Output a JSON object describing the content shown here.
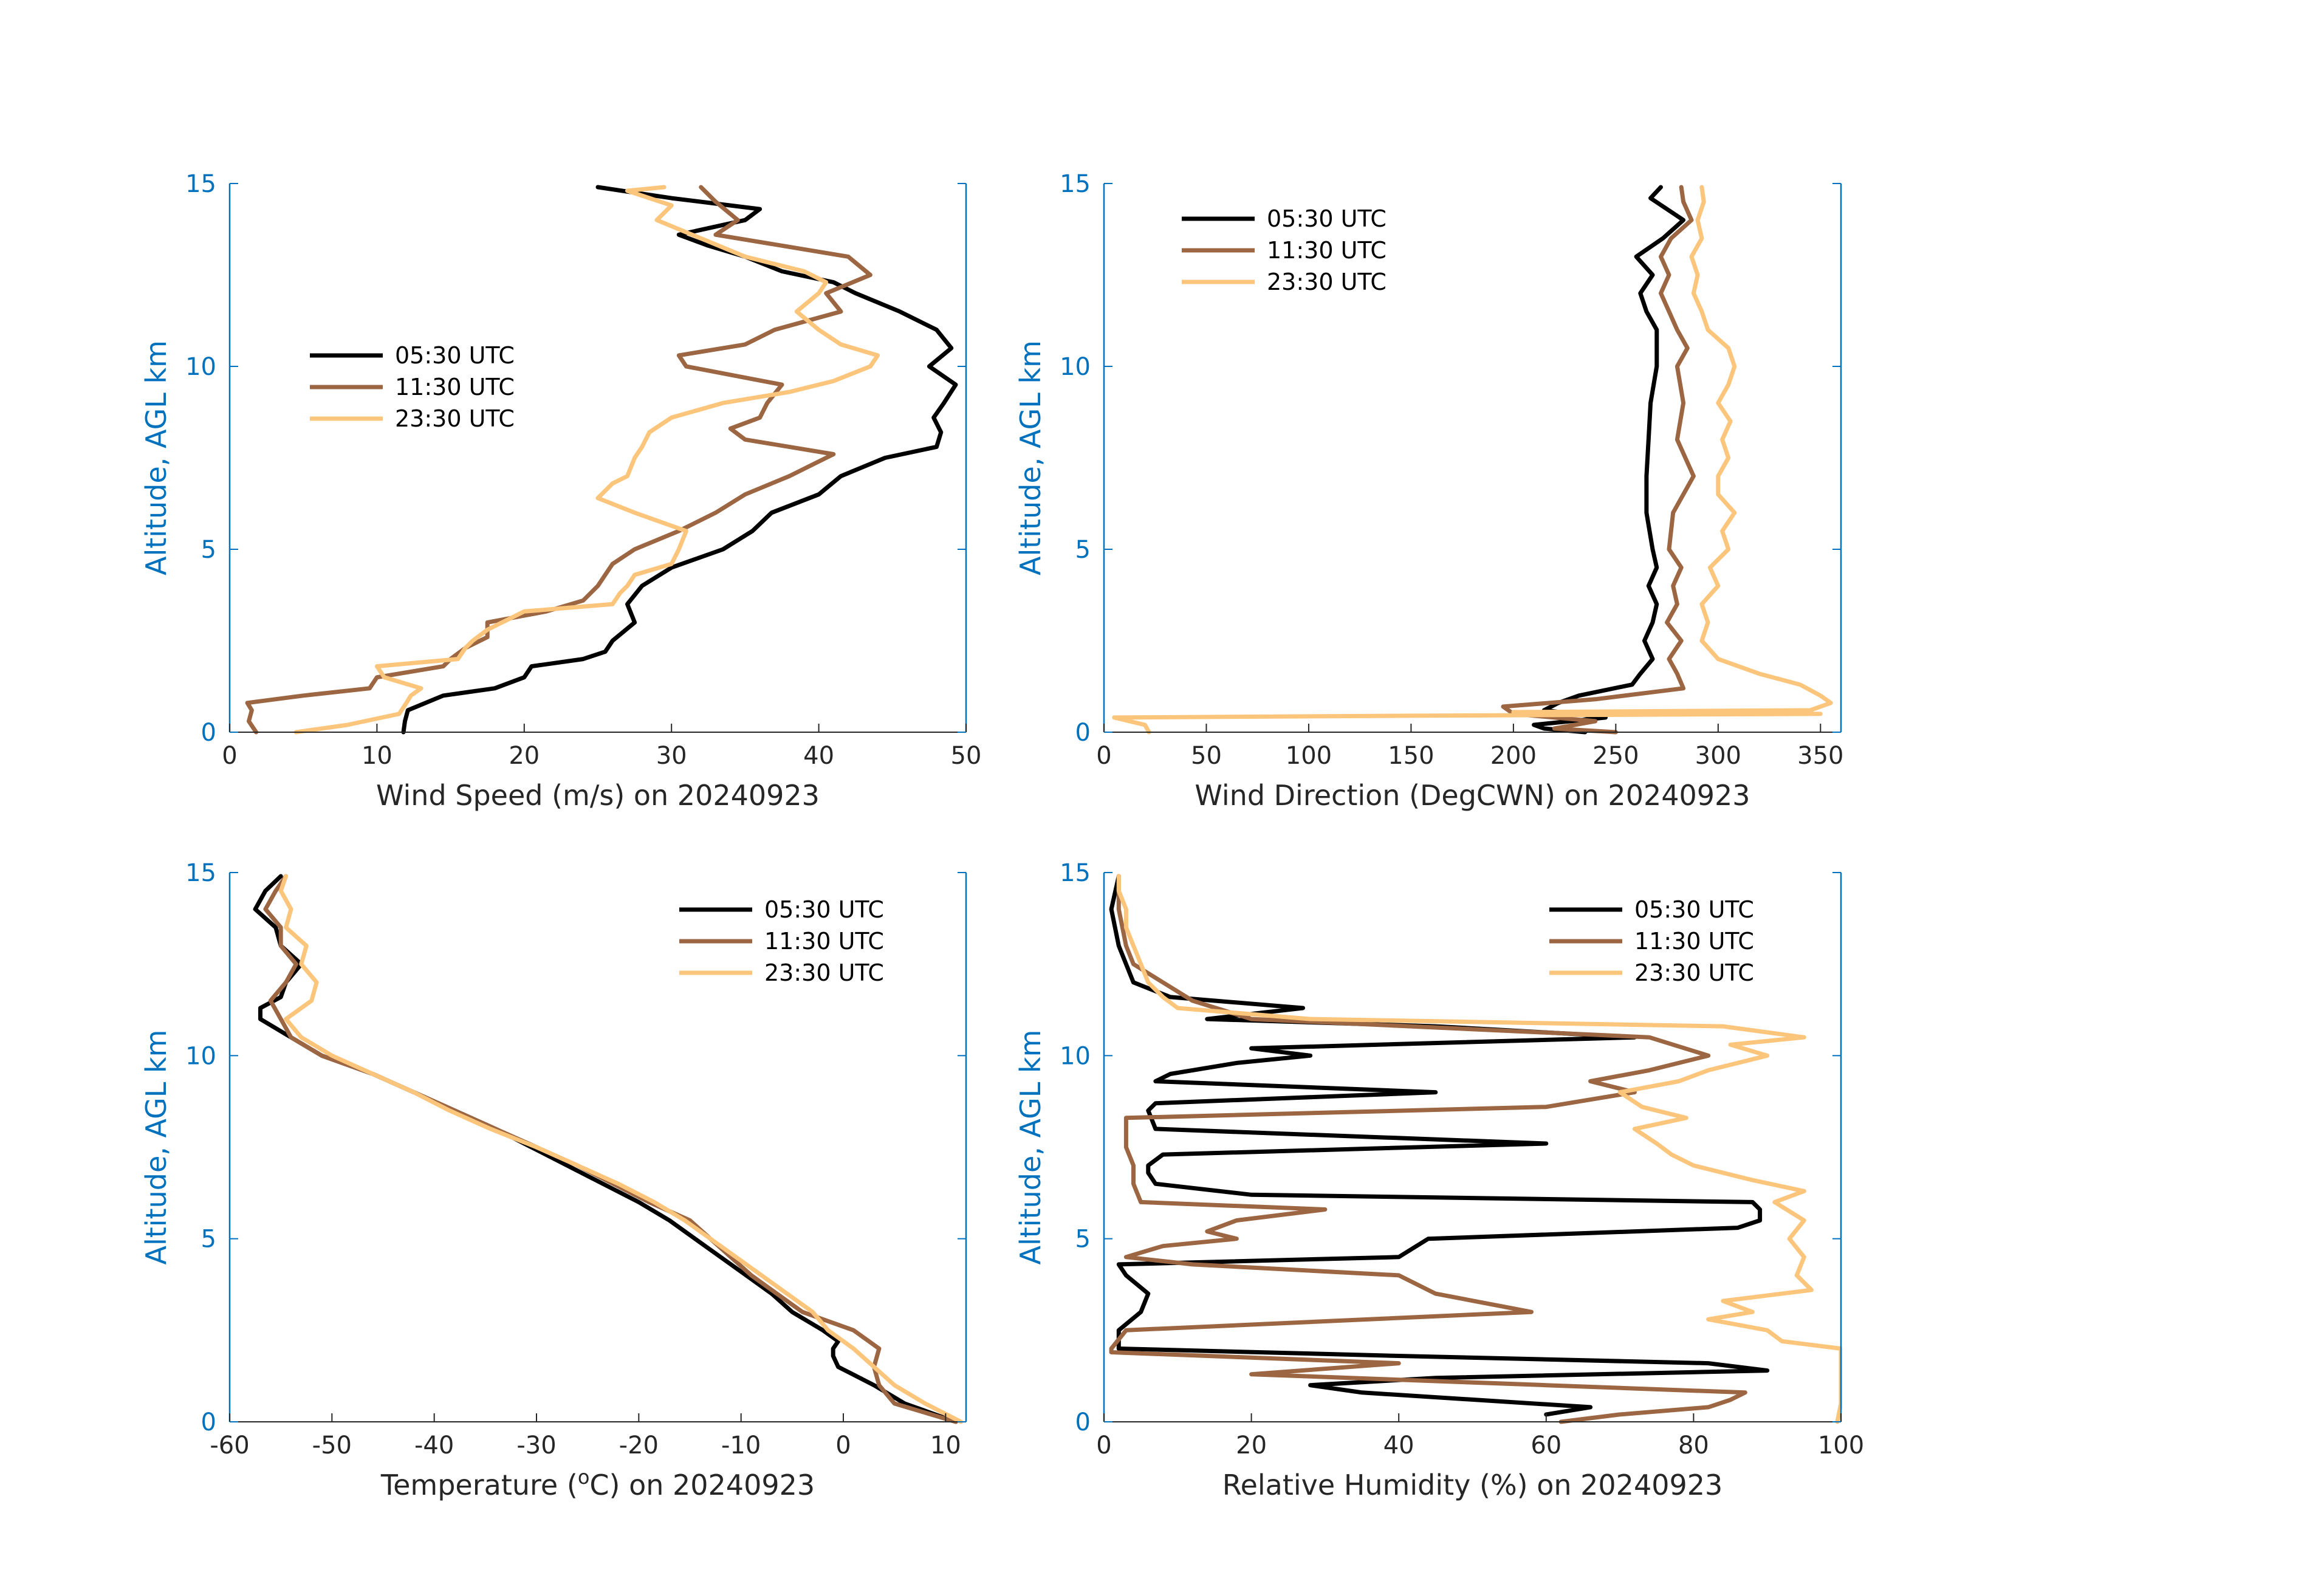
{
  "chart_data": [
    {
      "type": "line",
      "id": "wind_speed",
      "xlabel": "Wind Speed (m/s) on 20240923",
      "ylabel": "Altitude, AGL km",
      "xlim": [
        0,
        50
      ],
      "ylim": [
        0,
        15
      ],
      "xticks": [
        "0",
        "10",
        "20",
        "30",
        "40",
        "50"
      ],
      "yticks": [
        "0",
        "5",
        "10",
        "15"
      ],
      "legend": "upper-left",
      "series": [
        {
          "name": "05:30 UTC",
          "color": "#000000",
          "y": [
            0,
            0.3,
            0.6,
            1.0,
            1.2,
            1.5,
            1.8,
            2.0,
            2.2,
            2.5,
            3.0,
            3.5,
            4.0,
            4.5,
            5.0,
            5.5,
            6.0,
            6.5,
            7.0,
            7.5,
            7.8,
            8.2,
            8.6,
            9.0,
            9.5,
            10.0,
            10.5,
            11.0,
            11.5,
            12.0,
            12.3,
            12.6,
            13.0,
            13.3,
            13.6,
            14.0,
            14.3,
            14.6,
            14.9
          ],
          "x": [
            11.8,
            11.9,
            12.1,
            14.5,
            18,
            20,
            20.5,
            24,
            25.5,
            26,
            27.5,
            27,
            28,
            30,
            33.5,
            35.5,
            36.8,
            40,
            41.5,
            44.5,
            48,
            48.3,
            47.8,
            48.5,
            49.3,
            47.5,
            49,
            48,
            45.5,
            42.5,
            41,
            37.5,
            35,
            32.5,
            30.5,
            35,
            36,
            30,
            25
          ]
        },
        {
          "name": "11:30 UTC",
          "color": "#9C6642",
          "y": [
            0,
            0.3,
            0.6,
            0.8,
            1.0,
            1.2,
            1.5,
            1.8,
            2.0,
            2.3,
            2.6,
            3.0,
            3.3,
            3.6,
            4.0,
            4.3,
            4.6,
            5.0,
            5.5,
            6.0,
            6.5,
            7.0,
            7.3,
            7.6,
            8.0,
            8.3,
            8.6,
            9.0,
            9.5,
            10.0,
            10.3,
            10.6,
            11.0,
            11.5,
            12.0,
            12.5,
            13.0,
            13.3,
            13.6,
            14.0,
            14.5,
            14.9
          ],
          "x": [
            1.8,
            1.3,
            1.5,
            1.2,
            5,
            9.5,
            10,
            14.5,
            15,
            16,
            17.5,
            17.5,
            21.5,
            24,
            25,
            25.5,
            26,
            27.5,
            30.5,
            33,
            35,
            38,
            39.5,
            41,
            35,
            34,
            36,
            36.5,
            37.5,
            31,
            30.5,
            35,
            37,
            41.5,
            40.5,
            43.5,
            42,
            37.5,
            33,
            34.5,
            33,
            32
          ]
        },
        {
          "name": "23:30 UTC",
          "color": "#FCC57C",
          "y": [
            0,
            0.2,
            0.5,
            0.8,
            1.0,
            1.2,
            1.5,
            1.8,
            2.0,
            2.3,
            2.5,
            2.8,
            3.0,
            3.3,
            3.5,
            3.8,
            4.0,
            4.3,
            4.6,
            5.0,
            5.5,
            6.0,
            6.4,
            6.8,
            7.0,
            7.5,
            7.8,
            8.2,
            8.6,
            9.0,
            9.3,
            9.6,
            10.0,
            10.3,
            10.6,
            11.0,
            11.5,
            12.0,
            12.3,
            12.6,
            13.0,
            13.5,
            14.0,
            14.4,
            14.8,
            14.9
          ],
          "x": [
            4.5,
            8,
            11.5,
            12,
            12.3,
            13,
            10.5,
            10,
            15.5,
            16,
            16.5,
            17.5,
            18.5,
            20,
            26,
            26.5,
            27,
            27.5,
            30,
            30.5,
            31,
            27.5,
            25,
            26,
            27,
            27.5,
            28,
            28.5,
            30,
            33.5,
            38,
            41,
            43.5,
            44,
            41.5,
            40,
            38.5,
            40,
            40.5,
            39,
            35,
            32,
            29,
            30,
            27,
            29.5
          ]
        }
      ]
    },
    {
      "type": "line",
      "id": "wind_direction",
      "xlabel": "Wind Direction (DegCWN) on 20240923",
      "ylabel": "Altitude, AGL km",
      "xlim": [
        0,
        360
      ],
      "ylim": [
        0,
        15
      ],
      "xticks": [
        "0",
        "50",
        "100",
        "150",
        "200",
        "250",
        "300",
        "350"
      ],
      "yticks": [
        "0",
        "5",
        "10",
        "15"
      ],
      "legend": "upper-left",
      "series": [
        {
          "name": "05:30 UTC",
          "color": "#000000",
          "y": [
            0,
            0.1,
            0.2,
            0.4,
            0.6,
            0.8,
            1.0,
            1.3,
            1.6,
            2.0,
            2.5,
            3.0,
            3.5,
            4.0,
            4.5,
            5.0,
            6.0,
            7.0,
            8.0,
            9.0,
            10.0,
            11.0,
            11.5,
            12.0,
            12.5,
            13.0,
            13.5,
            14.0,
            14.3,
            14.6,
            14.9
          ],
          "x": [
            235,
            215,
            210,
            245,
            215,
            222,
            232,
            258,
            262,
            268,
            264,
            268,
            270,
            266,
            270,
            268,
            265,
            265,
            266,
            267,
            270,
            270,
            265,
            262,
            268,
            260,
            273,
            283,
            275,
            267,
            272
          ]
        },
        {
          "name": "11:30 UTC",
          "color": "#9C6642",
          "y": [
            0,
            0.1,
            0.3,
            0.5,
            0.7,
            0.9,
            1.2,
            1.6,
            2.0,
            2.5,
            3.0,
            3.5,
            4.0,
            4.5,
            5.0,
            6.0,
            7.0,
            8.0,
            9.0,
            10.0,
            10.5,
            11.0,
            11.5,
            12.0,
            12.5,
            13.0,
            13.5,
            14.0,
            14.5,
            14.9
          ],
          "x": [
            250,
            220,
            240,
            200,
            195,
            240,
            283,
            280,
            276,
            282,
            275,
            280,
            278,
            282,
            276,
            278,
            288,
            280,
            283,
            280,
            285,
            280,
            276,
            272,
            276,
            272,
            277,
            287,
            283,
            282
          ]
        },
        {
          "name": "23:30 UTC",
          "color": "#FCC57C",
          "y": [
            0,
            0.2,
            0.4,
            0.45,
            0.5,
            0.55,
            0.6,
            0.8,
            1.0,
            1.3,
            1.6,
            2.0,
            2.5,
            3.0,
            3.5,
            4.0,
            4.5,
            5.0,
            5.5,
            6.0,
            6.5,
            7.0,
            7.5,
            8.0,
            8.5,
            9.0,
            9.5,
            10.0,
            10.5,
            11.0,
            11.5,
            12.0,
            12.5,
            13.0,
            13.5,
            14.0,
            14.5,
            14.9
          ],
          "x": [
            22,
            20,
            5,
            150,
            350,
            200,
            345,
            355,
            350,
            340,
            320,
            300,
            292,
            295,
            292,
            300,
            296,
            305,
            302,
            308,
            300,
            300,
            305,
            302,
            306,
            300,
            305,
            308,
            305,
            295,
            292,
            288,
            290,
            287,
            292,
            290,
            293,
            292
          ]
        }
      ]
    },
    {
      "type": "line",
      "id": "temperature",
      "xlabel": "Temperature (oC) on 20240923",
      "xlabel_parts": [
        "Temperature (",
        "o",
        "C) on 20240923"
      ],
      "ylabel": "Altitude, AGL km",
      "xlim": [
        -60,
        12
      ],
      "ylim": [
        0,
        15
      ],
      "xticks": [
        "-60",
        "-50",
        "-40",
        "-30",
        "-20",
        "-10",
        "0",
        "10"
      ],
      "yticks": [
        "0",
        "5",
        "10",
        "15"
      ],
      "legend": "upper-right",
      "series": [
        {
          "name": "05:30 UTC",
          "color": "#000000",
          "y": [
            0,
            0.5,
            1.0,
            1.5,
            1.8,
            2.0,
            2.2,
            2.5,
            3.0,
            3.5,
            4.0,
            4.5,
            5.0,
            5.5,
            6.0,
            6.5,
            7.0,
            7.5,
            8.0,
            8.5,
            9.0,
            9.5,
            10.0,
            10.5,
            11.0,
            11.3,
            11.6,
            12.0,
            12.5,
            13.0,
            13.5,
            14.0,
            14.5,
            14.9
          ],
          "x": [
            11,
            6,
            3,
            -0.5,
            -1,
            -1,
            -0.5,
            -2,
            -5,
            -7,
            -9.5,
            -12,
            -14.5,
            -17,
            -20,
            -23.5,
            -27,
            -30.5,
            -34,
            -38,
            -42,
            -46,
            -51,
            -54,
            -57,
            -57,
            -55,
            -54.5,
            -53,
            -55,
            -55.5,
            -57.5,
            -56.5,
            -55
          ]
        },
        {
          "name": "11:30 UTC",
          "color": "#9C6642",
          "y": [
            0,
            0.5,
            1.0,
            1.5,
            2.0,
            2.5,
            3.0,
            3.5,
            4.0,
            4.5,
            5.0,
            5.5,
            6.0,
            6.5,
            7.0,
            7.5,
            8.0,
            8.5,
            9.0,
            9.5,
            10.0,
            10.5,
            11.0,
            11.5,
            12.0,
            12.5,
            13.0,
            13.5,
            14.0,
            14.5,
            14.9
          ],
          "x": [
            11,
            5,
            3.5,
            3,
            3.5,
            1,
            -4,
            -6.5,
            -9,
            -11,
            -13,
            -15,
            -19,
            -22.5,
            -26,
            -30,
            -34,
            -38,
            -42,
            -46,
            -51,
            -54,
            -55,
            -56,
            -54.5,
            -53.5,
            -55,
            -55,
            -56.5,
            -55.5,
            -54.5
          ]
        },
        {
          "name": "23:30 UTC",
          "color": "#FCC57C",
          "y": [
            0,
            0.5,
            1.0,
            1.5,
            2.0,
            2.5,
            3.0,
            3.5,
            4.0,
            4.5,
            5.0,
            5.5,
            6.0,
            6.5,
            7.0,
            7.5,
            8.0,
            8.5,
            9.0,
            9.5,
            10.0,
            10.5,
            11.0,
            11.5,
            12.0,
            12.5,
            13.0,
            13.5,
            14.0,
            14.5,
            14.9
          ],
          "x": [
            11.5,
            8,
            5,
            3,
            1,
            -1.5,
            -3,
            -5.5,
            -8,
            -10.5,
            -13,
            -15.5,
            -18.5,
            -22,
            -26,
            -30,
            -34.5,
            -38.5,
            -42,
            -46,
            -50,
            -53,
            -54.5,
            -52,
            -51.5,
            -53,
            -52.5,
            -54.5,
            -54,
            -55,
            -54.5
          ]
        }
      ]
    },
    {
      "type": "line",
      "id": "relative_humidity",
      "xlabel": "Relative Humidity (%) on 20240923",
      "ylabel": "Altitude, AGL km",
      "xlim": [
        0,
        100
      ],
      "ylim": [
        0,
        15
      ],
      "xticks": [
        "0",
        "20",
        "40",
        "60",
        "80",
        "100"
      ],
      "yticks": [
        "0",
        "5",
        "10",
        "15"
      ],
      "legend": "upper-right",
      "series": [
        {
          "name": "05:30 UTC",
          "color": "#000000",
          "y": [
            0.2,
            0.4,
            0.8,
            1.0,
            1.2,
            1.4,
            1.6,
            1.8,
            2.0,
            2.5,
            3.0,
            3.5,
            4.0,
            4.3,
            4.5,
            5.0,
            5.3,
            5.5,
            5.8,
            6.0,
            6.2,
            6.5,
            6.8,
            7.0,
            7.3,
            7.6,
            8.0,
            8.5,
            8.7,
            9.0,
            9.3,
            9.5,
            9.8,
            10.0,
            10.2,
            10.5,
            10.8,
            11.0,
            11.3,
            11.6,
            12.0,
            12.5,
            13.0,
            14.0,
            14.9
          ],
          "x": [
            60,
            66,
            35,
            28,
            45,
            90,
            82,
            40,
            2,
            2,
            5,
            6,
            3,
            2,
            40,
            44,
            86,
            89,
            89,
            88,
            20,
            7,
            6,
            6,
            8,
            60,
            7,
            6,
            7,
            45,
            7,
            9,
            18,
            28,
            20,
            72,
            45,
            14,
            27,
            9,
            4,
            3,
            2,
            1,
            2
          ]
        },
        {
          "name": "11:30 UTC",
          "color": "#9C6642",
          "y": [
            0,
            0.2,
            0.4,
            0.6,
            0.8,
            1.0,
            1.3,
            1.6,
            1.9,
            2.0,
            2.5,
            3.0,
            3.5,
            4.0,
            4.3,
            4.5,
            4.8,
            5.0,
            5.2,
            5.5,
            5.8,
            6.0,
            6.5,
            7.0,
            7.5,
            8.0,
            8.3,
            8.6,
            9.0,
            9.3,
            9.6,
            10.0,
            10.5,
            11.0,
            11.5,
            12.0,
            12.5,
            13.0,
            14.0,
            14.9
          ],
          "x": [
            62,
            70,
            82,
            85,
            87,
            60,
            20,
            40,
            1,
            1,
            3,
            58,
            45,
            40,
            12,
            3,
            8,
            18,
            14,
            18,
            30,
            5,
            4,
            4,
            3,
            3,
            3,
            60,
            72,
            66,
            74,
            82,
            74,
            20,
            12,
            8,
            4,
            3,
            2,
            2
          ]
        },
        {
          "name": "23:30 UTC",
          "color": "#FCC57C",
          "y": [
            0,
            0.5,
            1.0,
            1.5,
            2.0,
            2.2,
            2.5,
            2.8,
            3.0,
            3.3,
            3.6,
            4.0,
            4.5,
            5.0,
            5.5,
            6.0,
            6.3,
            6.6,
            7.0,
            7.3,
            7.6,
            8.0,
            8.3,
            8.6,
            9.0,
            9.3,
            9.6,
            10.0,
            10.3,
            10.5,
            10.8,
            11.0,
            11.3,
            11.6,
            12.0,
            12.5,
            13.0,
            13.5,
            14.0,
            14.5,
            14.9
          ],
          "x": [
            99.5,
            100,
            100,
            100,
            100,
            92,
            90,
            82,
            88,
            84,
            96,
            94,
            95,
            93,
            95,
            91,
            95,
            88,
            80,
            77,
            75,
            72,
            79,
            73,
            70,
            78,
            82,
            90,
            85,
            95,
            84,
            28,
            10,
            8,
            6,
            5,
            4,
            3,
            3,
            2,
            2
          ]
        }
      ]
    }
  ]
}
